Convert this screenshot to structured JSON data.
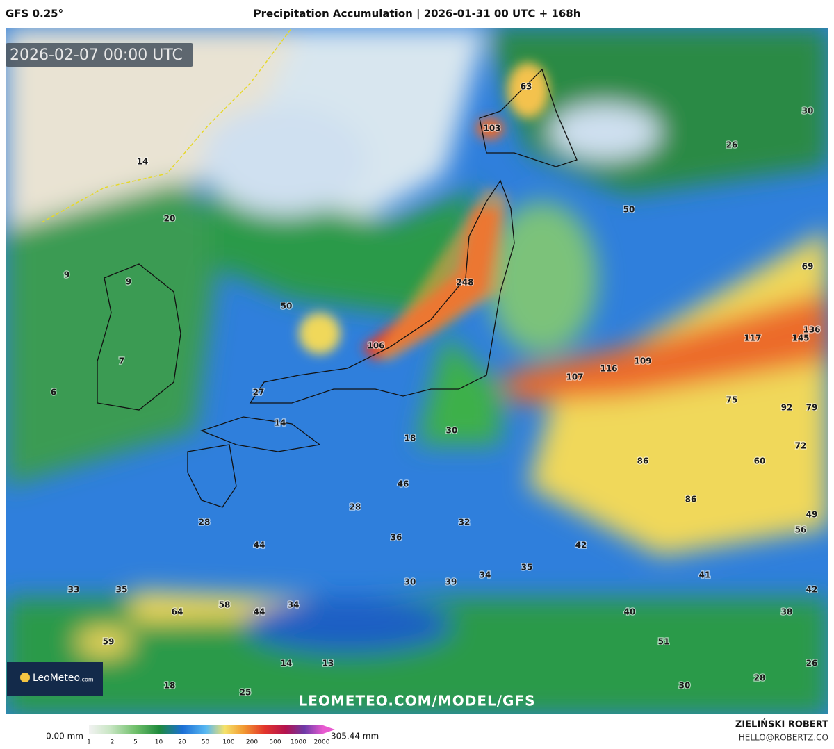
{
  "header": {
    "model": "GFS 0.25°",
    "title": "Precipitation Accumulation | 2026-01-31 00 UTC + 168h"
  },
  "timestamp": "2026-02-07 00:00 UTC",
  "map_labels": [
    63,
    103,
    30,
    26,
    14,
    20,
    50,
    69,
    9,
    9,
    248,
    50,
    136,
    117,
    145,
    106,
    109,
    116,
    107,
    7,
    6,
    27,
    75,
    92,
    79,
    14,
    18,
    30,
    72,
    86,
    60,
    46,
    86,
    28,
    49,
    28,
    32,
    56,
    36,
    44,
    42,
    35,
    34,
    41,
    30,
    39,
    33,
    35,
    42,
    58,
    34,
    64,
    44,
    40,
    38,
    51,
    59,
    14,
    13,
    26,
    28,
    18,
    30,
    25
  ],
  "logo": {
    "name": "LeoMeteo",
    "suffix": ".com"
  },
  "watermark": "LEOMETEO.COM/MODEL/GFS",
  "legend": {
    "min_label": "0.00 mm",
    "max_label": "305.44 mm",
    "ticks": [
      1,
      2,
      5,
      10,
      20,
      50,
      100,
      200,
      500,
      1000,
      2000
    ]
  },
  "credit": {
    "name": "ZIELIŃSKI ROBERT",
    "email": "HELLO@ROBERTZ.CO"
  }
}
